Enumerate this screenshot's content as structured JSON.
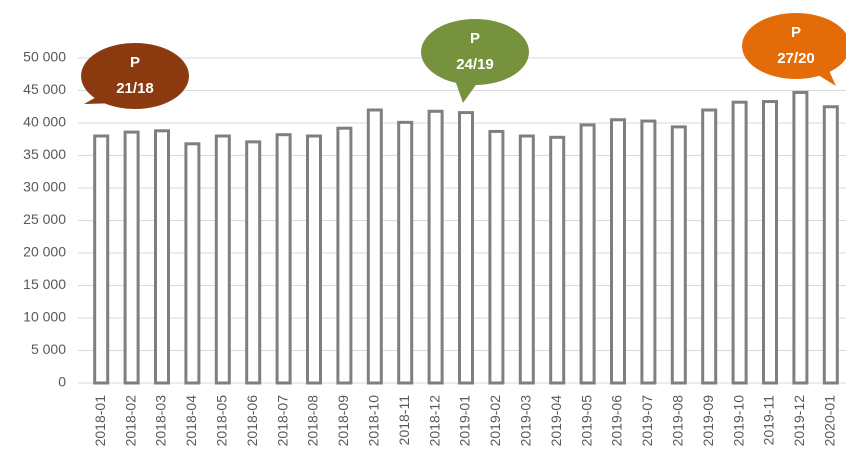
{
  "chart_data": {
    "type": "bar",
    "categories": [
      "2018-01",
      "2018-02",
      "2018-03",
      "2018-04",
      "2018-05",
      "2018-06",
      "2018-07",
      "2018-08",
      "2018-09",
      "2018-10",
      "2018-11",
      "2018-12",
      "2019-01",
      "2019-02",
      "2019-03",
      "2019-04",
      "2019-05",
      "2019-06",
      "2019-07",
      "2019-08",
      "2019-09",
      "2019-10",
      "2019-11",
      "2019-12",
      "2020-01"
    ],
    "values": [
      38000,
      38600,
      38800,
      36800,
      38000,
      37100,
      38200,
      38000,
      39200,
      42000,
      40100,
      41800,
      41600,
      38700,
      38000,
      37800,
      39700,
      40500,
      40300,
      39400,
      42000,
      43200,
      43300,
      44700,
      42500
    ],
    "color": "#7f7f7f",
    "ylim": [
      0,
      50000
    ],
    "yticks": [
      0,
      {
        "value": 5000,
        "label": "5 000"
      },
      {
        "value": 10000,
        "label": "10 000"
      },
      {
        "value": 15000,
        "label": "15 000"
      },
      {
        "value": 20000,
        "label": "20 000"
      },
      {
        "value": 25000,
        "label": "25 000"
      },
      {
        "value": 30000,
        "label": "30 000"
      },
      {
        "value": 35000,
        "label": "35 000"
      },
      {
        "value": 40000,
        "label": "40 000"
      },
      {
        "value": 45000,
        "label": "45 000"
      },
      {
        "value": 50000,
        "label": "50 000"
      }
    ],
    "grid": true,
    "annotations": [
      {
        "lines": [
          "P",
          "21/18"
        ],
        "color": "#8b3a0f"
      },
      {
        "lines": [
          "P",
          "24/19"
        ],
        "color": "#76923c"
      },
      {
        "lines": [
          "P",
          "27/20"
        ],
        "color": "#e36c09"
      }
    ]
  }
}
